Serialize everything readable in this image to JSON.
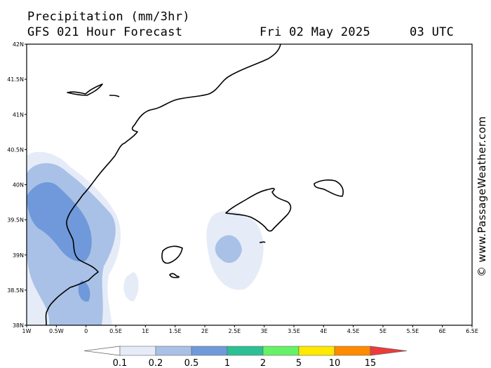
{
  "header": {
    "title": "Precipitation (mm/3hr)",
    "forecast": "GFS 021 Hour Forecast",
    "date": "Fri 02 May 2025",
    "time": "03 UTC"
  },
  "watermark": "© www.PassageWeather.com",
  "axes": {
    "lat_labels": [
      "42N",
      "41.5N",
      "41N",
      "40.5N",
      "40N",
      "39.5N",
      "39N",
      "38.5N",
      "38N"
    ],
    "lon_labels": [
      "1W",
      "0.5W",
      "0",
      "0.5E",
      "1E",
      "1.5E",
      "2E",
      "2.5E",
      "3E",
      "3.5E",
      "4E",
      "4.5E",
      "5E",
      "5.5E",
      "6E",
      "6.5E"
    ],
    "lat_range": [
      38,
      42
    ],
    "lon_range": [
      -1,
      6.5
    ]
  },
  "legend": {
    "ticks": [
      "0.1",
      "0.2",
      "0.5",
      "1",
      "2",
      "5",
      "10",
      "15"
    ],
    "colors": [
      "#ffffff",
      "#e5ecf8",
      "#a9c1e6",
      "#6f99da",
      "#2cc094",
      "#66f266",
      "#ffe900",
      "#ff8a00",
      "#ee3a3a"
    ]
  }
}
